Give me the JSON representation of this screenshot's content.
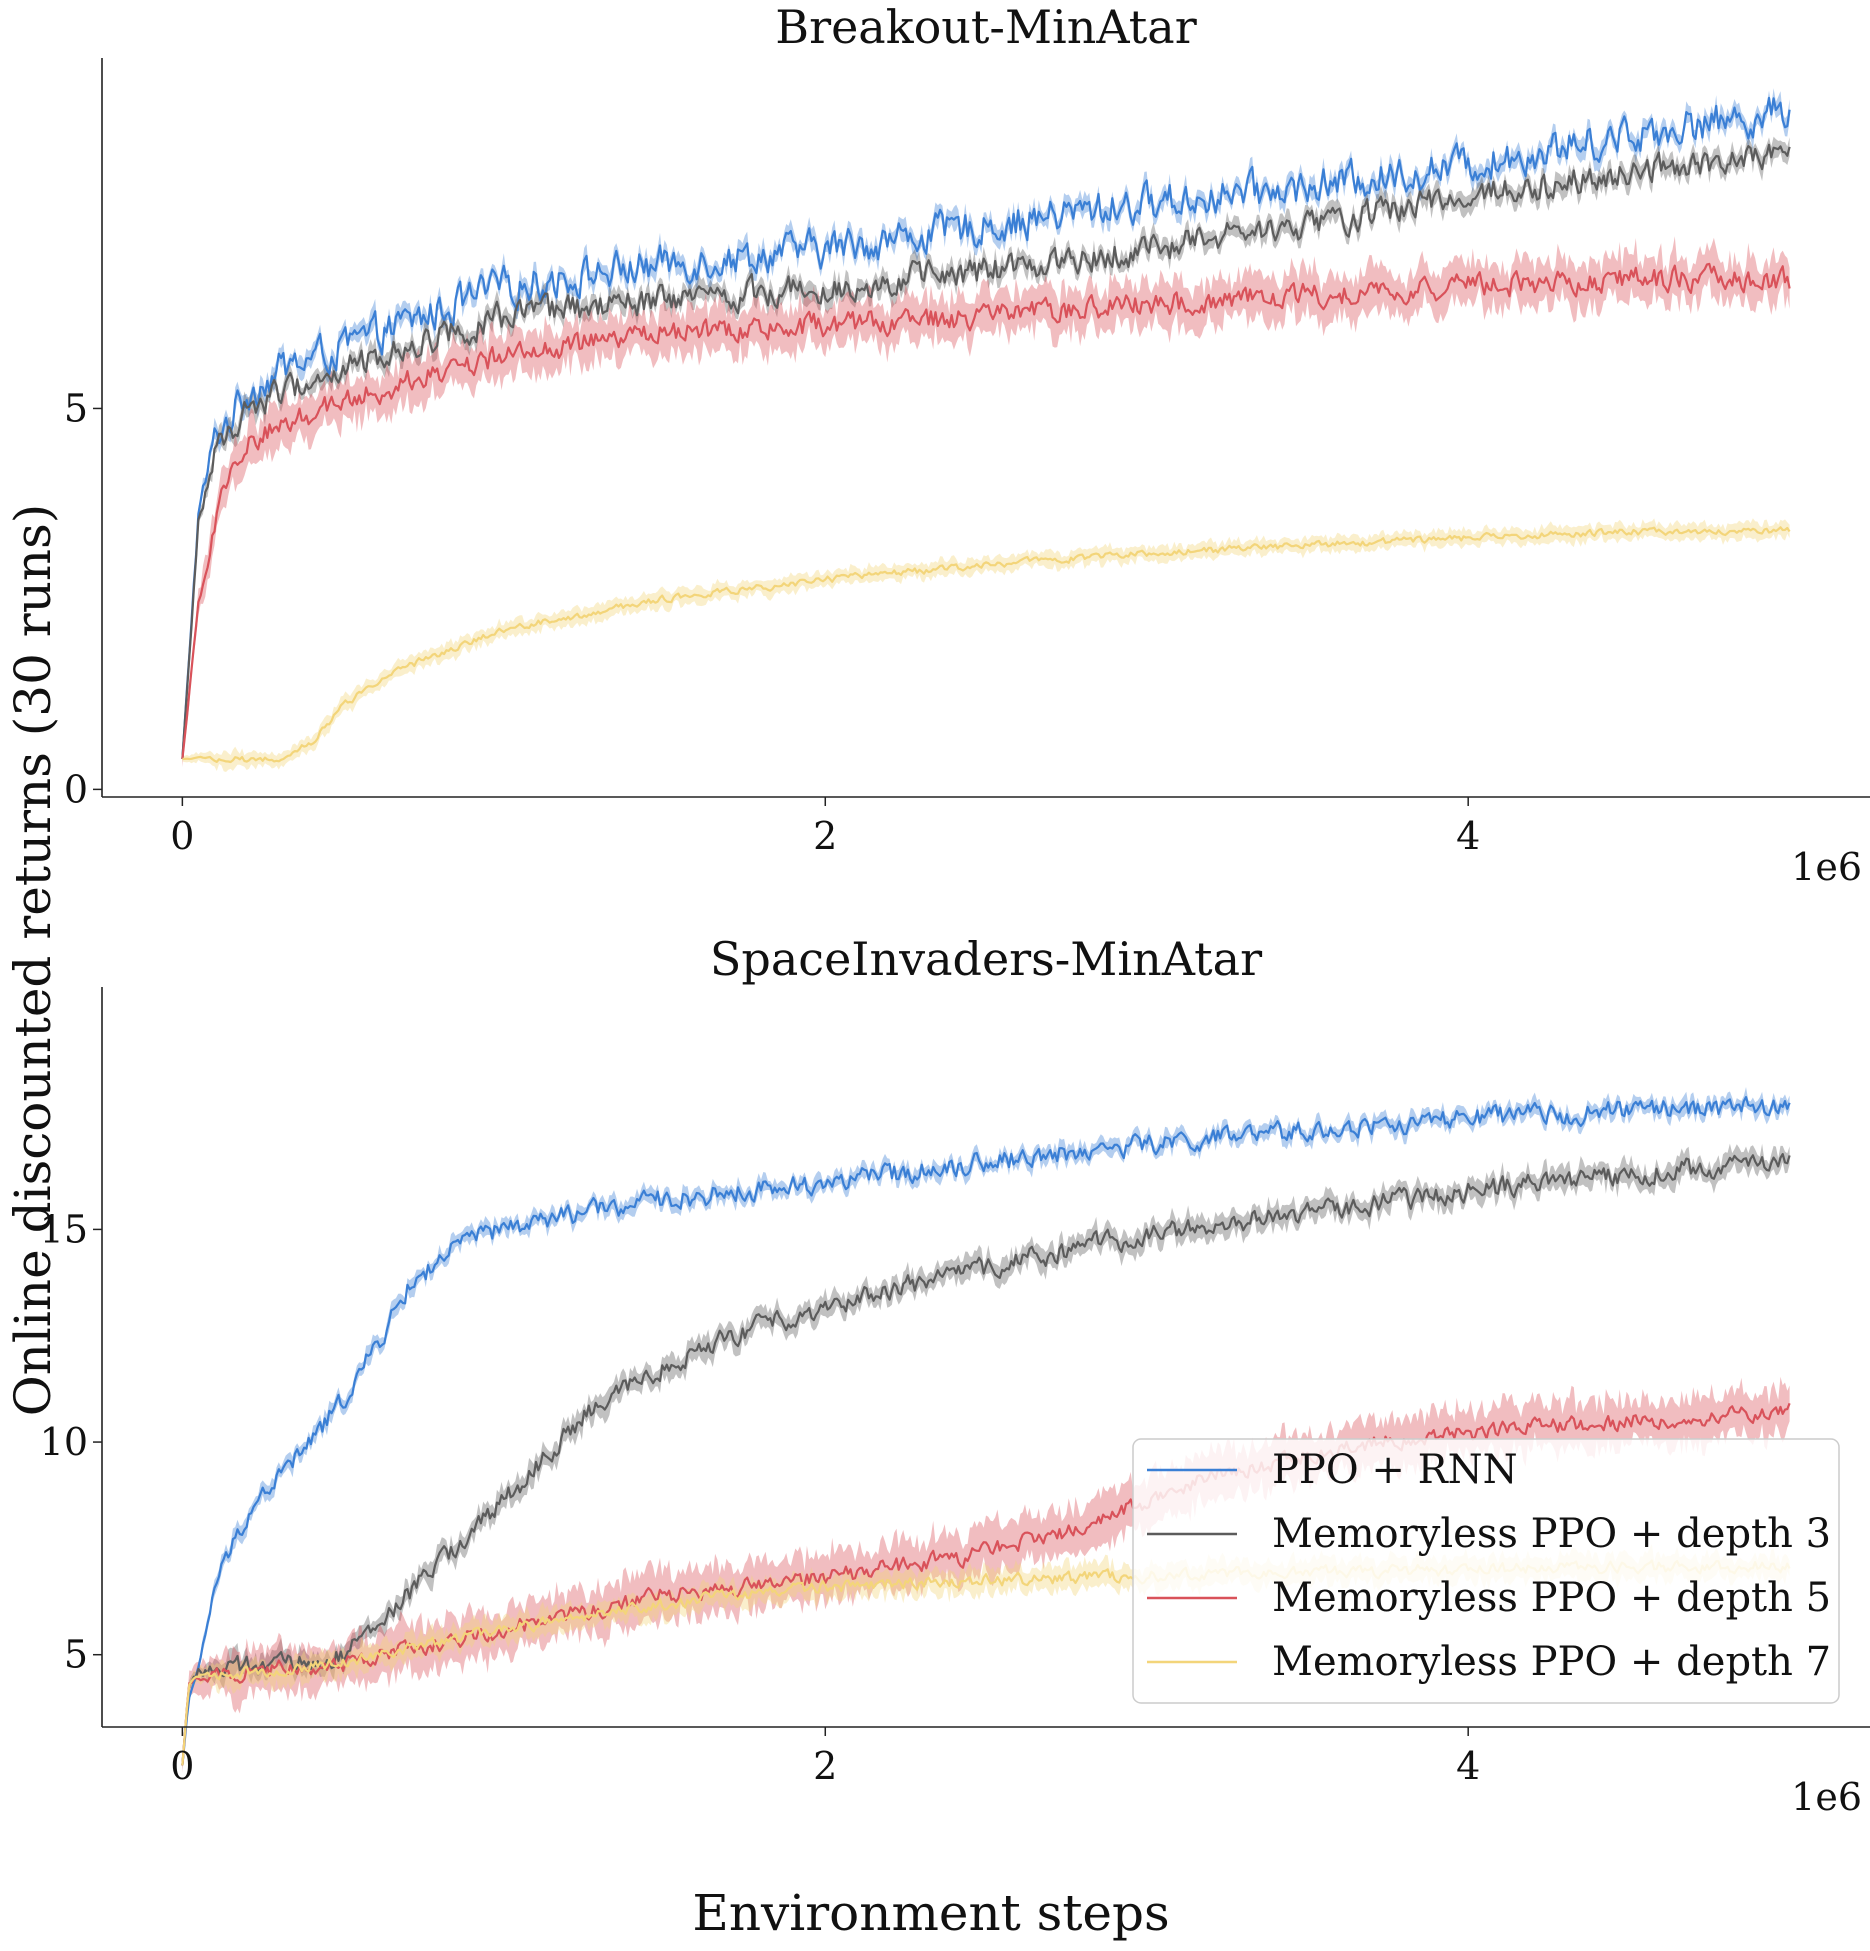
{
  "figure": {
    "ylabel": "Online discounted returns (30 runs)",
    "xlabel": "Environment steps"
  },
  "chart_data": [
    {
      "type": "line",
      "title": "Breakout-MinAtar",
      "xlabel": "",
      "ylabel": "",
      "xlim": [
        -250000,
        5250000
      ],
      "ylim": [
        -0.1,
        9.6
      ],
      "x_ticks": [
        0,
        2,
        4
      ],
      "x_tick_labels": [
        "0",
        "2",
        "4"
      ],
      "x_offset_label": "1e6",
      "y_ticks": [
        0,
        5
      ],
      "y_tick_labels": [
        "0",
        "5"
      ],
      "grid": false,
      "series": [
        {
          "name": "PPO + RNN",
          "color": "#3a7fd5",
          "x": [
            0,
            50000,
            100000,
            200000,
            300000,
            500000,
            750000,
            1000000,
            1500000,
            2000000,
            2500000,
            3000000,
            3500000,
            4000000,
            4500000,
            5000000
          ],
          "y": [
            0.4,
            3.6,
            4.6,
            5.2,
            5.5,
            5.8,
            6.2,
            6.6,
            6.9,
            7.1,
            7.4,
            7.7,
            7.9,
            8.2,
            8.6,
            8.9
          ],
          "band": 0.12,
          "noise": 0.38
        },
        {
          "name": "Memoryless PPO + depth 3",
          "color": "#5c5c5c",
          "x": [
            0,
            50000,
            100000,
            200000,
            300000,
            500000,
            750000,
            1000000,
            1500000,
            2000000,
            2500000,
            3000000,
            3500000,
            4000000,
            4500000,
            5000000
          ],
          "y": [
            0.4,
            3.5,
            4.4,
            5.0,
            5.2,
            5.5,
            5.9,
            6.2,
            6.4,
            6.6,
            6.8,
            7.1,
            7.4,
            7.8,
            8.1,
            8.3
          ],
          "band": 0.12,
          "noise": 0.3
        },
        {
          "name": "Memoryless PPO + depth 5",
          "color": "#d9525a",
          "x": [
            0,
            50000,
            100000,
            150000,
            200000,
            300000,
            500000,
            750000,
            1000000,
            1500000,
            2000000,
            2500000,
            3000000,
            3500000,
            4000000,
            4500000,
            5000000
          ],
          "y": [
            0.4,
            2.4,
            3.5,
            4.1,
            4.5,
            4.8,
            5.1,
            5.4,
            5.7,
            6.0,
            6.1,
            6.2,
            6.35,
            6.5,
            6.6,
            6.7,
            6.7
          ],
          "band": 0.28,
          "noise": 0.25
        },
        {
          "name": "Memoryless PPO + depth 7",
          "color": "#f3d57a",
          "x": [
            0,
            300000,
            400000,
            500000,
            600000,
            750000,
            1000000,
            1250000,
            1500000,
            2000000,
            2500000,
            3000000,
            3500000,
            4000000,
            4500000,
            5000000
          ],
          "y": [
            0.4,
            0.4,
            0.6,
            1.1,
            1.4,
            1.7,
            2.1,
            2.3,
            2.5,
            2.75,
            2.95,
            3.1,
            3.2,
            3.3,
            3.38,
            3.4
          ],
          "band": 0.1,
          "noise": 0.07
        }
      ]
    },
    {
      "type": "line",
      "title": "SpaceInvaders-MinAtar",
      "xlabel": "",
      "ylabel": "",
      "xlim": [
        -250000,
        5250000
      ],
      "ylim": [
        3.3,
        20.7
      ],
      "x_ticks": [
        0,
        2,
        4
      ],
      "x_tick_labels": [
        "0",
        "2",
        "4"
      ],
      "x_offset_label": "1e6",
      "y_ticks": [
        5,
        10,
        15
      ],
      "y_tick_labels": [
        "5",
        "10",
        "15"
      ],
      "grid": false,
      "legend": "lower-right",
      "series": [
        {
          "name": "PPO + RNN",
          "color": "#3a7fd5",
          "x": [
            0,
            20000,
            50000,
            100000,
            200000,
            300000,
            400000,
            500000,
            600000,
            700000,
            800000,
            900000,
            1000000,
            1250000,
            1500000,
            2000000,
            2500000,
            3000000,
            3500000,
            4000000,
            4500000,
            5000000
          ],
          "y": [
            2.4,
            4.0,
            4.6,
            6.6,
            8.3,
            9.2,
            10.0,
            11.0,
            12.2,
            13.6,
            14.3,
            14.8,
            15.0,
            15.4,
            15.7,
            16.1,
            16.6,
            17.0,
            17.3,
            17.6,
            17.8,
            17.9
          ],
          "band": 0.18,
          "noise": 0.38
        },
        {
          "name": "Memoryless PPO + depth 3",
          "color": "#5c5c5c",
          "x": [
            0,
            20000,
            50000,
            200000,
            400000,
            500000,
            600000,
            750000,
            1000000,
            1250000,
            1500000,
            1750000,
            2000000,
            2500000,
            3000000,
            3500000,
            4000000,
            4500000,
            5000000
          ],
          "y": [
            2.4,
            4.3,
            4.6,
            4.7,
            4.8,
            5.0,
            5.6,
            6.8,
            8.6,
            10.6,
            11.8,
            12.6,
            13.2,
            14.1,
            14.9,
            15.4,
            15.9,
            16.3,
            16.6
          ],
          "band": 0.25,
          "noise": 0.38
        },
        {
          "name": "Memoryless PPO + depth 5",
          "color": "#d9525a",
          "x": [
            0,
            20000,
            50000,
            500000,
            1000000,
            1500000,
            2000000,
            2500000,
            2750000,
            3000000,
            3250000,
            3500000,
            3750000,
            4000000,
            4500000,
            5000000
          ],
          "y": [
            2.4,
            4.3,
            4.5,
            4.8,
            5.6,
            6.4,
            6.8,
            7.4,
            7.9,
            8.6,
            9.3,
            9.7,
            10.0,
            10.2,
            10.5,
            10.7
          ],
          "band": 0.55,
          "noise": 0.32
        },
        {
          "name": "Memoryless PPO + depth 7",
          "color": "#f3d57a",
          "x": [
            0,
            20000,
            50000,
            500000,
            1000000,
            1500000,
            2000000,
            2500000,
            3000000,
            3500000,
            4000000,
            4500000,
            5000000
          ],
          "y": [
            2.4,
            4.3,
            4.5,
            4.8,
            5.6,
            6.2,
            6.6,
            6.75,
            6.85,
            6.95,
            7.0,
            7.05,
            7.1
          ],
          "band": 0.28,
          "noise": 0.22
        }
      ]
    }
  ]
}
